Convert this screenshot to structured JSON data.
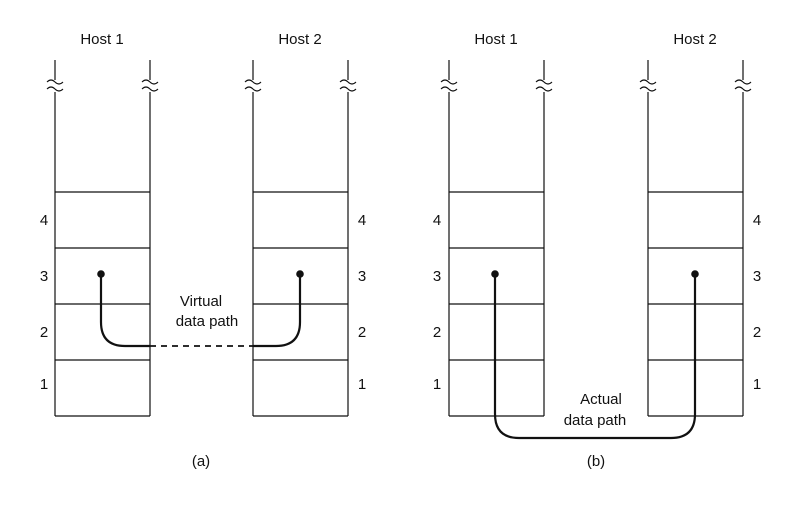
{
  "panel_a": {
    "host1_title": "Host 1",
    "host2_title": "Host 2",
    "host1_layers": [
      "4",
      "3",
      "2",
      "1"
    ],
    "host2_layers": [
      "4",
      "3",
      "2",
      "1"
    ],
    "path_label_line1": "Virtual",
    "path_label_line2": "data path",
    "caption": "(a)"
  },
  "panel_b": {
    "host1_title": "Host 1",
    "host2_title": "Host 2",
    "host1_layers": [
      "4",
      "3",
      "2",
      "1"
    ],
    "host2_layers": [
      "4",
      "3",
      "2",
      "1"
    ],
    "path_label_line1": "Actual",
    "path_label_line2": "data path",
    "caption": "(b)"
  }
}
